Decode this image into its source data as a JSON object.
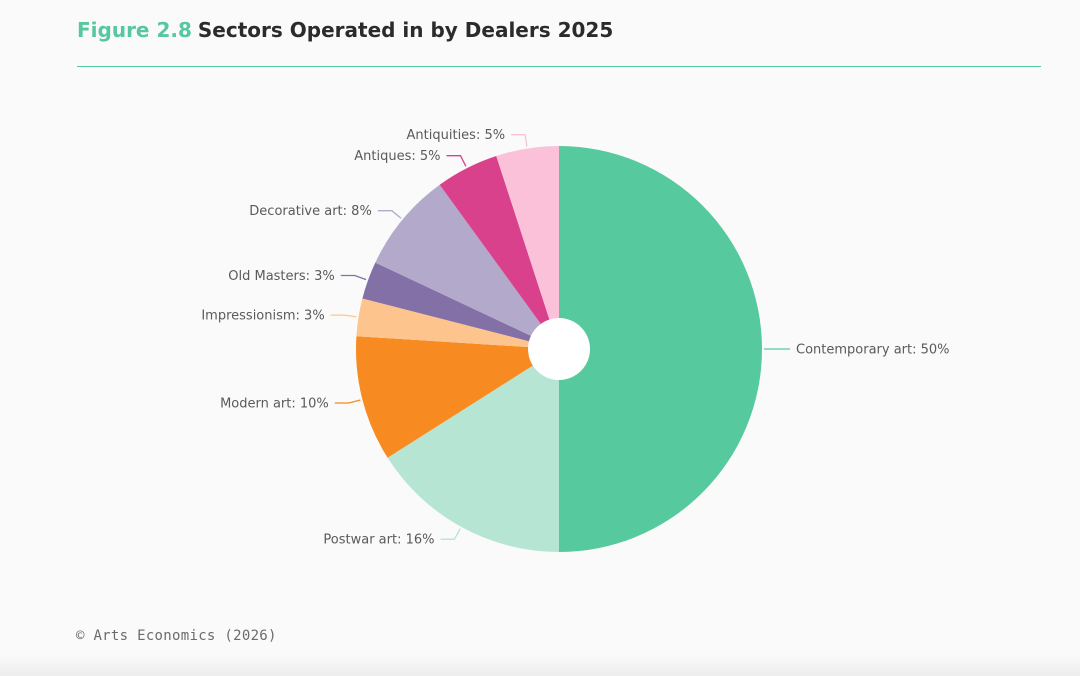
{
  "figure": {
    "number": "Figure 2.8",
    "title": "Sectors Operated in by Dealers 2025"
  },
  "source": "© Arts Economics (2026)",
  "colors": {
    "accent": "#57c79f"
  },
  "chart_data": {
    "type": "pie",
    "title": "Sectors Operated in by Dealers 2025",
    "start_angle_deg": 0,
    "direction": "clockwise",
    "slices": [
      {
        "name": "Contemporary art",
        "value": 50,
        "label": "Contemporary art: 50%",
        "color": "#57c99f"
      },
      {
        "name": "Postwar art",
        "value": 16,
        "label": "Postwar art: 16%",
        "color": "#b6e6d3"
      },
      {
        "name": "Modern art",
        "value": 10,
        "label": "Modern art: 10%",
        "color": "#f78b21"
      },
      {
        "name": "Impressionism",
        "value": 3,
        "label": "Impressionism: 3%",
        "color": "#fdc58d"
      },
      {
        "name": "Old Masters",
        "value": 3,
        "label": "Old Masters: 3%",
        "color": "#8270a6"
      },
      {
        "name": "Decorative art",
        "value": 8,
        "label": "Decorative art: 8%",
        "color": "#b3a9cb"
      },
      {
        "name": "Antiques",
        "value": 5,
        "label": "Antiques: 5%",
        "color": "#d9418c"
      },
      {
        "name": "Antiquities",
        "value": 5,
        "label": "Antiquities: 5%",
        "color": "#fbc1d9"
      }
    ]
  }
}
